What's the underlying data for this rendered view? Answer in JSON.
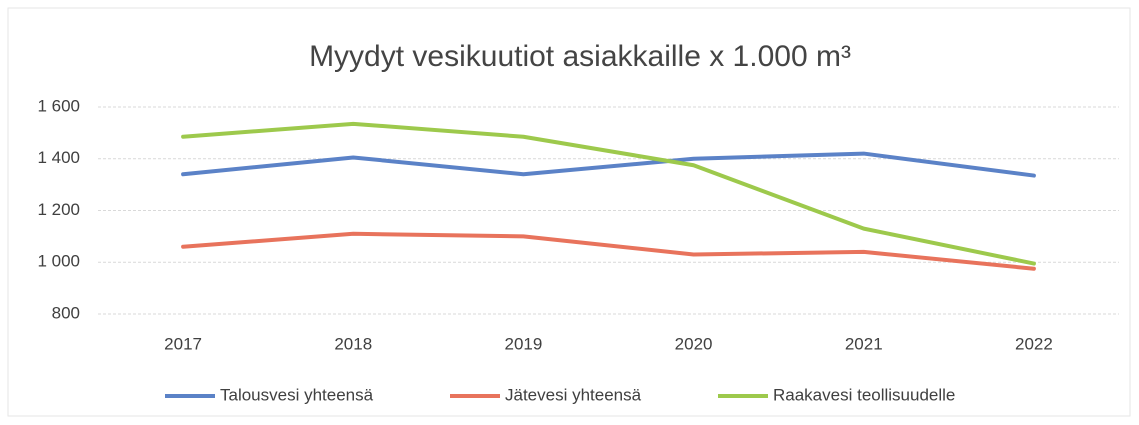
{
  "chart_data": {
    "type": "line",
    "title": "Myydyt vesikuutiot asiakkaille  x 1.000 m³",
    "categories": [
      "2017",
      "2018",
      "2019",
      "2020",
      "2021",
      "2022"
    ],
    "series": [
      {
        "name": "Talousvesi yhteensä",
        "color": "#5b82c7",
        "values": [
          1340,
          1405,
          1340,
          1400,
          1420,
          1335
        ]
      },
      {
        "name": "Jätevesi yhteensä",
        "color": "#e8735c",
        "values": [
          1060,
          1110,
          1100,
          1030,
          1040,
          975
        ]
      },
      {
        "name": "Raakavesi teollisuudelle",
        "color": "#9dc94c",
        "values": [
          1485,
          1535,
          1485,
          1375,
          1130,
          995
        ]
      }
    ],
    "ylim": [
      800,
      1600
    ],
    "yticks": [
      800,
      {
        "value": 1000,
        "label": "1 000"
      },
      {
        "value": 1200,
        "label": "1 200"
      },
      {
        "value": 1400,
        "label": "1 400"
      },
      {
        "value": 1600,
        "label": "1 600"
      }
    ],
    "grid": true,
    "legend": "bottom"
  }
}
